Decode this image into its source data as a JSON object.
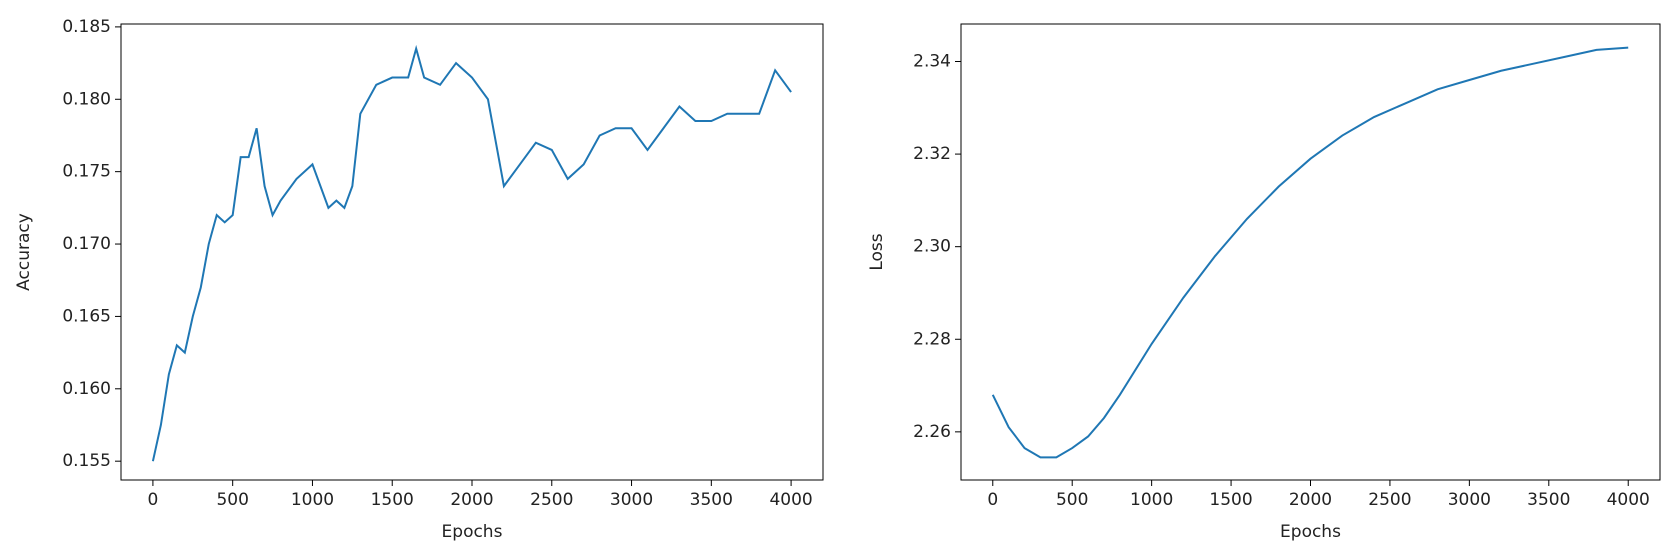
{
  "chart_data": [
    {
      "type": "line",
      "xlabel": "Epochs",
      "ylabel": "Accuracy",
      "color": "#1f77b4",
      "x": [
        0,
        50,
        100,
        150,
        200,
        250,
        300,
        350,
        400,
        450,
        500,
        550,
        600,
        650,
        700,
        750,
        800,
        900,
        1000,
        1100,
        1150,
        1200,
        1250,
        1300,
        1400,
        1500,
        1600,
        1650,
        1700,
        1800,
        1900,
        2000,
        2100,
        2150,
        2200,
        2300,
        2400,
        2500,
        2600,
        2700,
        2800,
        2900,
        3000,
        3100,
        3200,
        3300,
        3400,
        3500,
        3600,
        3700,
        3800,
        3900,
        4000
      ],
      "values": [
        0.155,
        0.1575,
        0.161,
        0.163,
        0.1625,
        0.165,
        0.167,
        0.17,
        0.172,
        0.1715,
        0.172,
        0.176,
        0.176,
        0.178,
        0.174,
        0.172,
        0.173,
        0.1745,
        0.1755,
        0.1725,
        0.173,
        0.1725,
        0.174,
        0.179,
        0.181,
        0.1815,
        0.1815,
        0.1835,
        0.1815,
        0.181,
        0.1825,
        0.1815,
        0.18,
        0.177,
        0.174,
        0.1755,
        0.177,
        0.1765,
        0.1745,
        0.1755,
        0.1775,
        0.178,
        0.178,
        0.1765,
        0.178,
        0.1795,
        0.1785,
        0.1785,
        0.179,
        0.179,
        0.179,
        0.182,
        0.1805
      ],
      "xlim": [
        -200,
        4200
      ],
      "xticks": [
        0,
        500,
        1000,
        1500,
        2000,
        2500,
        3000,
        3500,
        4000
      ],
      "ylim": [
        0.1537,
        0.1852
      ],
      "yticks": [
        0.155,
        {
          "value": 0.16,
          "label": "0.160"
        },
        0.165,
        {
          "value": 0.17,
          "label": "0.170"
        },
        0.175,
        {
          "value": 0.18,
          "label": "0.180"
        },
        0.185
      ]
    },
    {
      "type": "line",
      "xlabel": "Epochs",
      "ylabel": "Loss",
      "color": "#1f77b4",
      "x": [
        0,
        100,
        200,
        300,
        400,
        500,
        600,
        700,
        800,
        1000,
        1200,
        1400,
        1600,
        1800,
        2000,
        2200,
        2400,
        2600,
        2800,
        3000,
        3200,
        3400,
        3600,
        3800,
        4000
      ],
      "values": [
        2.268,
        2.261,
        2.2565,
        2.2545,
        2.2545,
        2.2565,
        2.259,
        2.263,
        2.268,
        2.279,
        2.289,
        2.298,
        2.306,
        2.313,
        2.319,
        2.324,
        2.328,
        2.331,
        2.334,
        2.336,
        2.338,
        2.3395,
        2.341,
        2.3425,
        2.343
      ],
      "xlim": [
        -200,
        4200
      ],
      "xticks": [
        0,
        500,
        1000,
        1500,
        2000,
        2500,
        3000,
        3500,
        4000
      ],
      "ylim": [
        2.2496,
        2.3481
      ],
      "yticks": [
        2.26,
        2.28,
        {
          "value": 2.3,
          "label": "2.30"
        },
        2.32,
        2.34
      ]
    }
  ]
}
